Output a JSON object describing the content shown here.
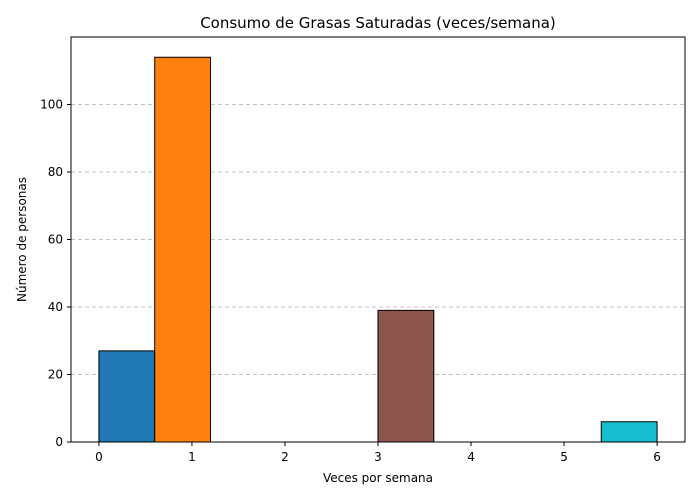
{
  "chart_data": {
    "type": "bar",
    "title": "Consumo de Grasas Saturadas (veces/semana)",
    "xlabel": "Veces por semana",
    "ylabel": "Número de personas",
    "xlim": [
      -0.3,
      6.3
    ],
    "ylim": [
      0,
      120
    ],
    "xticks": [
      0,
      1,
      2,
      3,
      4,
      5,
      6
    ],
    "yticks": [
      0,
      20,
      40,
      60,
      80,
      100
    ],
    "grid": "y-dashed",
    "bar_width": 0.6,
    "bars": [
      {
        "x_start": 0.0,
        "x_end": 0.6,
        "value": 27,
        "color": "#1f77b4"
      },
      {
        "x_start": 0.6,
        "x_end": 1.2,
        "value": 114,
        "color": "#ff7f0e"
      },
      {
        "x_start": 3.0,
        "x_end": 3.6,
        "value": 39,
        "color": "#8c564b"
      },
      {
        "x_start": 5.4,
        "x_end": 6.0,
        "value": 6,
        "color": "#17becf"
      }
    ],
    "bar_edge_color": "#000000"
  }
}
